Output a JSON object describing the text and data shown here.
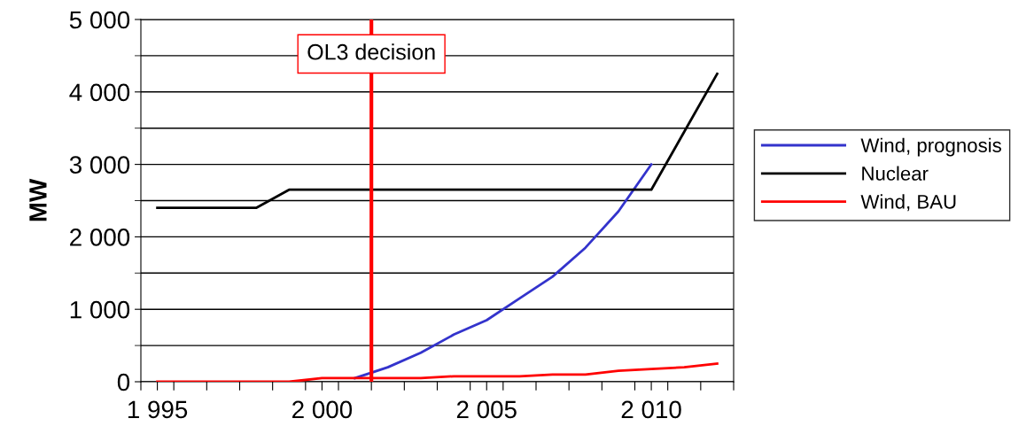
{
  "chart_data": {
    "type": "line",
    "ylabel": "MW",
    "x": [
      1995,
      1996,
      1997,
      1998,
      1999,
      2000,
      2001,
      2002,
      2003,
      2004,
      2005,
      2006,
      2007,
      2008,
      2009,
      2010,
      2011,
      2012
    ],
    "series": [
      {
        "name": "Wind, prognosis",
        "color": "#3333cc",
        "values": [
          null,
          null,
          null,
          null,
          null,
          null,
          50,
          200,
          400,
          650,
          850,
          1150,
          1450,
          1850,
          2350,
          3000,
          null,
          null
        ]
      },
      {
        "name": "Nuclear",
        "color": "#000000",
        "values": [
          2400,
          2400,
          2400,
          2400,
          2650,
          2650,
          2650,
          2650,
          2650,
          2650,
          2650,
          2650,
          2650,
          2650,
          2650,
          2650,
          3450,
          4250
        ]
      },
      {
        "name": "Wind, BAU",
        "color": "#ff0000",
        "values": [
          0,
          0,
          0,
          0,
          0,
          50,
          50,
          50,
          50,
          75,
          75,
          75,
          100,
          100,
          150,
          175,
          200,
          250
        ]
      }
    ],
    "xlim": [
      1994.5,
      2012.5
    ],
    "xticks": [
      {
        "value": 1994.5,
        "label": null
      },
      {
        "value": 1995,
        "label": "1 995"
      },
      {
        "value": 1995.5,
        "label": null
      },
      {
        "value": 1996.5,
        "label": null
      },
      {
        "value": 1997.5,
        "label": null
      },
      {
        "value": 1998.5,
        "label": null
      },
      {
        "value": 1999.5,
        "label": null
      },
      {
        "value": 2000,
        "label": "2 000"
      },
      {
        "value": 2000.5,
        "label": null
      },
      {
        "value": 2001.5,
        "label": null
      },
      {
        "value": 2002.5,
        "label": null
      },
      {
        "value": 2003.5,
        "label": null
      },
      {
        "value": 2004.5,
        "label": null
      },
      {
        "value": 2005,
        "label": "2 005"
      },
      {
        "value": 2005.5,
        "label": null
      },
      {
        "value": 2006.5,
        "label": null
      },
      {
        "value": 2007.5,
        "label": null
      },
      {
        "value": 2008.5,
        "label": null
      },
      {
        "value": 2009.5,
        "label": null
      },
      {
        "value": 2010,
        "label": "2 010"
      },
      {
        "value": 2010.5,
        "label": null
      },
      {
        "value": 2011.5,
        "label": null
      },
      {
        "value": 2012.5,
        "label": null
      }
    ],
    "ylim": [
      0,
      5000
    ],
    "yticks": [
      {
        "value": 0,
        "label": "0"
      },
      {
        "value": 500,
        "label": null
      },
      {
        "value": 1000,
        "label": "1 000"
      },
      {
        "value": 1500,
        "label": null
      },
      {
        "value": 2000,
        "label": "2 000"
      },
      {
        "value": 2500,
        "label": null
      },
      {
        "value": 3000,
        "label": "3 000"
      },
      {
        "value": 3500,
        "label": null
      },
      {
        "value": 4000,
        "label": "4 000"
      },
      {
        "value": 4500,
        "label": null
      },
      {
        "value": 5000,
        "label": "5 000"
      }
    ],
    "ref_lines": [
      {
        "axis": "x",
        "value": 2001.5,
        "label": "OL3 decision",
        "color": "#ff0000"
      }
    ],
    "grid": "y",
    "legend": "right",
    "marker": "none",
    "line_style": "solid"
  }
}
